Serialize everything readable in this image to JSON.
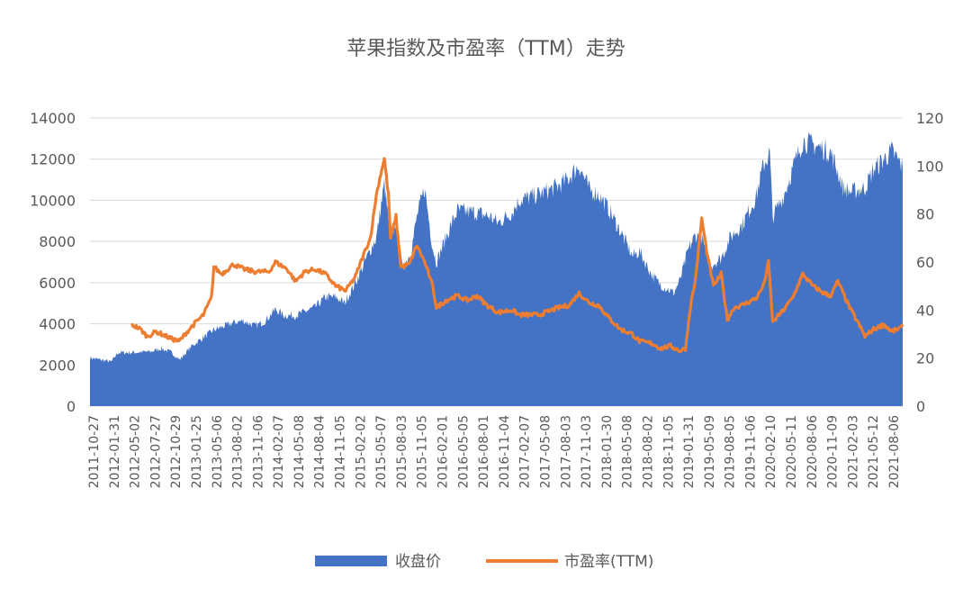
{
  "chart_data": {
    "type": "area+line",
    "title": "苹果指数及市盈率（TTM）走势",
    "legend": {
      "placement": "bottom"
    },
    "grid": true,
    "y_left": {
      "ticks": [
        "0",
        "2000",
        "4000",
        "6000",
        "8000",
        "10000",
        "12000",
        "14000"
      ],
      "range": [
        0,
        14000
      ]
    },
    "y_right": {
      "ticks": [
        "0",
        "20",
        "40",
        "60",
        "80",
        "100",
        "120"
      ],
      "range": [
        0,
        120
      ]
    },
    "x_range": [
      "2011-10-27",
      "2021-10-29"
    ],
    "x_tick_labels": [
      "2011-10-27",
      "2012-01-31",
      "2012-05-02",
      "2012-07-27",
      "2012-10-29",
      "2013-01-25",
      "2013-05-06",
      "2013-08-02",
      "2013-11-06",
      "2014-02-07",
      "2014-05-08",
      "2014-08-04",
      "2014-11-05",
      "2015-02-02",
      "2015-05-07",
      "2015-08-03",
      "2015-11-05",
      "2016-02-01",
      "2016-05-05",
      "2016-08-01",
      "2016-11-04",
      "2017-02-07",
      "2017-05-08",
      "2017-08-03",
      "2017-11-03",
      "2018-01-30",
      "2018-05-08",
      "2018-08-02",
      "2018-11-05",
      "2019-01-31",
      "2019-05-09",
      "2019-08-05",
      "2019-11-06",
      "2020-02-10",
      "2020-05-11",
      "2020-08-06",
      "2020-11-09",
      "2021-02-03",
      "2021-05-12",
      "2021-08-06"
    ],
    "series": [
      {
        "name": "收盘价",
        "kind": "area",
        "color": "#4472c4",
        "points": [
          [
            "2011-10-27",
            2350
          ],
          [
            "2011-12-15",
            2250
          ],
          [
            "2012-01-31",
            2150
          ],
          [
            "2012-03-01",
            2600
          ],
          [
            "2012-05-02",
            2600
          ],
          [
            "2012-07-27",
            2650
          ],
          [
            "2012-09-10",
            2800
          ],
          [
            "2012-10-29",
            2600
          ],
          [
            "2012-12-03",
            2250
          ],
          [
            "2013-01-25",
            2900
          ],
          [
            "2013-03-15",
            3300
          ],
          [
            "2013-05-06",
            3700
          ],
          [
            "2013-08-02",
            4050
          ],
          [
            "2013-09-15",
            4150
          ],
          [
            "2013-11-06",
            3900
          ],
          [
            "2013-12-20",
            4100
          ],
          [
            "2014-02-07",
            4700
          ],
          [
            "2014-03-20",
            4400
          ],
          [
            "2014-05-08",
            4400
          ],
          [
            "2014-08-04",
            4800
          ],
          [
            "2014-09-20",
            5300
          ],
          [
            "2014-11-05",
            5300
          ],
          [
            "2014-12-15",
            5000
          ],
          [
            "2015-02-02",
            6000
          ],
          [
            "2015-04-10",
            7600
          ],
          [
            "2015-05-07",
            8200
          ],
          [
            "2015-06-12",
            10800
          ],
          [
            "2015-06-30",
            9000
          ],
          [
            "2015-07-15",
            8300
          ],
          [
            "2015-08-03",
            9000
          ],
          [
            "2015-09-01",
            6700
          ],
          [
            "2015-10-10",
            7500
          ],
          [
            "2015-11-05",
            9200
          ],
          [
            "2015-12-10",
            10600
          ],
          [
            "2016-01-15",
            7700
          ],
          [
            "2016-02-01",
            7000
          ],
          [
            "2016-03-15",
            8200
          ],
          [
            "2016-05-05",
            9500
          ],
          [
            "2016-08-01",
            9400
          ],
          [
            "2016-10-01",
            9200
          ],
          [
            "2016-11-04",
            8900
          ],
          [
            "2017-01-05",
            9400
          ],
          [
            "2017-02-07",
            10000
          ],
          [
            "2017-05-08",
            10300
          ],
          [
            "2017-08-03",
            10700
          ],
          [
            "2017-09-20",
            11100
          ],
          [
            "2017-11-03",
            11700
          ],
          [
            "2017-12-20",
            10500
          ],
          [
            "2018-01-30",
            10300
          ],
          [
            "2018-03-15",
            9600
          ],
          [
            "2018-05-08",
            8500
          ],
          [
            "2018-07-01",
            7300
          ],
          [
            "2018-08-02",
            7500
          ],
          [
            "2018-10-01",
            6300
          ],
          [
            "2018-11-05",
            5900
          ],
          [
            "2019-01-03",
            5500
          ],
          [
            "2019-01-31",
            6100
          ],
          [
            "2019-03-10",
            7600
          ],
          [
            "2019-04-10",
            8300
          ],
          [
            "2019-05-09",
            8200
          ],
          [
            "2019-06-15",
            6800
          ],
          [
            "2019-08-05",
            7200
          ],
          [
            "2019-09-15",
            8200
          ],
          [
            "2019-11-06",
            8800
          ],
          [
            "2020-01-10",
            10200
          ],
          [
            "2020-02-10",
            11700
          ],
          [
            "2020-03-10",
            12300
          ],
          [
            "2020-03-23",
            9200
          ],
          [
            "2020-05-11",
            10200
          ],
          [
            "2020-06-20",
            11500
          ],
          [
            "2020-08-06",
            12900
          ],
          [
            "2020-09-20",
            12700
          ],
          [
            "2020-11-09",
            12500
          ],
          [
            "2020-12-10",
            12300
          ],
          [
            "2021-01-10",
            11400
          ],
          [
            "2021-02-03",
            10600
          ],
          [
            "2021-03-10",
            10400
          ],
          [
            "2021-05-12",
            10600
          ],
          [
            "2021-06-20",
            11500
          ],
          [
            "2021-08-06",
            12000
          ],
          [
            "2021-09-10",
            12400
          ],
          [
            "2021-10-29",
            11600
          ]
        ]
      },
      {
        "name": "市盈率(TTM)",
        "kind": "line",
        "color": "#ed7d31",
        "axis": "right",
        "points": [
          [
            "2012-05-02",
            34
          ],
          [
            "2012-06-10",
            32
          ],
          [
            "2012-07-10",
            29
          ],
          [
            "2012-08-20",
            31
          ],
          [
            "2012-10-29",
            28
          ],
          [
            "2012-12-01",
            27
          ],
          [
            "2013-01-25",
            33
          ],
          [
            "2013-03-20",
            38
          ],
          [
            "2013-04-25",
            45
          ],
          [
            "2013-05-06",
            58
          ],
          [
            "2013-06-10",
            55
          ],
          [
            "2013-08-02",
            59
          ],
          [
            "2013-09-20",
            57
          ],
          [
            "2013-11-06",
            56
          ],
          [
            "2014-01-10",
            56
          ],
          [
            "2014-02-07",
            60
          ],
          [
            "2014-04-01",
            57
          ],
          [
            "2014-05-08",
            52
          ],
          [
            "2014-06-20",
            56
          ],
          [
            "2014-08-04",
            57
          ],
          [
            "2014-09-20",
            55
          ],
          [
            "2014-11-05",
            50
          ],
          [
            "2014-12-20",
            48
          ],
          [
            "2015-02-02",
            54
          ],
          [
            "2015-03-10",
            63
          ],
          [
            "2015-04-10",
            70
          ],
          [
            "2015-05-07",
            88
          ],
          [
            "2015-06-01",
            99
          ],
          [
            "2015-06-12",
            103
          ],
          [
            "2015-06-30",
            88
          ],
          [
            "2015-07-10",
            70
          ],
          [
            "2015-08-03",
            79
          ],
          [
            "2015-08-25",
            58
          ],
          [
            "2015-10-01",
            59
          ],
          [
            "2015-11-05",
            67
          ],
          [
            "2015-12-10",
            60
          ],
          [
            "2016-01-15",
            50
          ],
          [
            "2016-02-01",
            41
          ],
          [
            "2016-03-15",
            44
          ],
          [
            "2016-05-05",
            46
          ],
          [
            "2016-06-20",
            44
          ],
          [
            "2016-08-01",
            46
          ],
          [
            "2016-09-15",
            42
          ],
          [
            "2016-11-04",
            39
          ],
          [
            "2017-01-05",
            40
          ],
          [
            "2017-02-07",
            38
          ],
          [
            "2017-05-08",
            38
          ],
          [
            "2017-08-03",
            41
          ],
          [
            "2017-09-20",
            42
          ],
          [
            "2017-11-03",
            47
          ],
          [
            "2017-12-20",
            43
          ],
          [
            "2018-01-30",
            42
          ],
          [
            "2018-03-15",
            37
          ],
          [
            "2018-05-08",
            32
          ],
          [
            "2018-07-01",
            30
          ],
          [
            "2018-08-02",
            27
          ],
          [
            "2018-10-01",
            26
          ],
          [
            "2018-11-05",
            24
          ],
          [
            "2018-12-20",
            25
          ],
          [
            "2019-01-31",
            23
          ],
          [
            "2019-02-25",
            24
          ],
          [
            "2019-03-20",
            42
          ],
          [
            "2019-04-10",
            52
          ],
          [
            "2019-05-09",
            78
          ],
          [
            "2019-06-05",
            62
          ],
          [
            "2019-07-01",
            50
          ],
          [
            "2019-08-05",
            55
          ],
          [
            "2019-09-01",
            36
          ],
          [
            "2019-10-01",
            41
          ],
          [
            "2019-11-06",
            42
          ],
          [
            "2020-01-10",
            45
          ],
          [
            "2020-02-10",
            50
          ],
          [
            "2020-03-05",
            60
          ],
          [
            "2020-03-23",
            35
          ],
          [
            "2020-05-11",
            40
          ],
          [
            "2020-06-20",
            45
          ],
          [
            "2020-08-06",
            55
          ],
          [
            "2020-09-20",
            50
          ],
          [
            "2020-11-09",
            47
          ],
          [
            "2020-12-10",
            46
          ],
          [
            "2021-01-10",
            52
          ],
          [
            "2021-02-03",
            47
          ],
          [
            "2021-03-10",
            40
          ],
          [
            "2021-04-10",
            35
          ],
          [
            "2021-05-12",
            29
          ],
          [
            "2021-06-20",
            32
          ],
          [
            "2021-08-06",
            34
          ],
          [
            "2021-09-10",
            31
          ],
          [
            "2021-10-29",
            33
          ]
        ]
      }
    ]
  }
}
